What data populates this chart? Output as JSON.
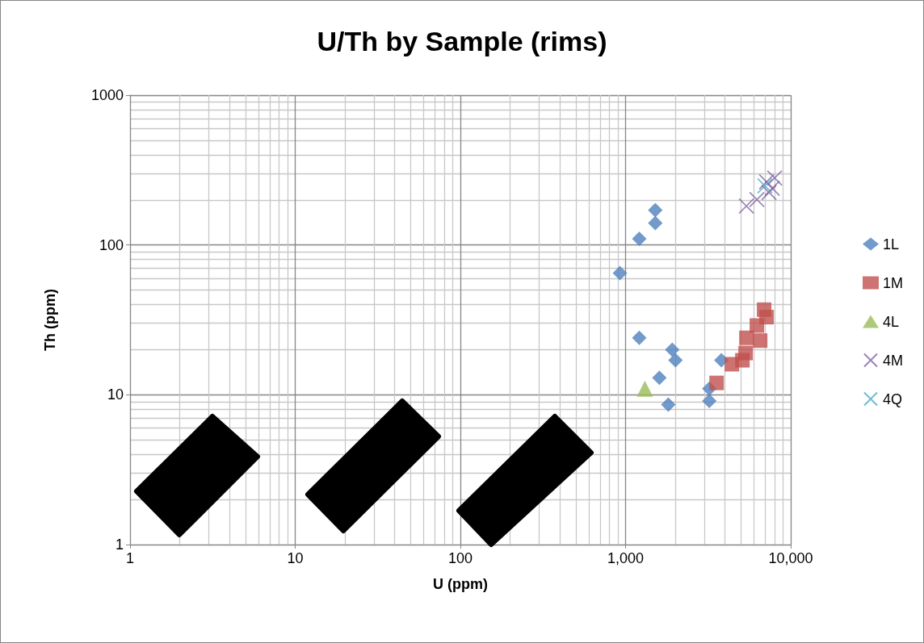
{
  "chart_data": {
    "type": "scatter",
    "title": "U/Th by Sample (rims)",
    "xlabel": "U (ppm)",
    "ylabel": "Th (ppm)",
    "log": "xy",
    "grid": true,
    "legend": "right",
    "xlim": [
      1,
      10000
    ],
    "xticks": [
      1,
      10,
      100,
      {
        "value": 1000,
        "label": "1,000"
      },
      {
        "value": 10000,
        "label": "10,000"
      }
    ],
    "ylim": [
      1,
      1000
    ],
    "yticks": [
      1,
      10,
      100,
      1000
    ],
    "series": [
      {
        "name": "1L",
        "color": "#4f81bd",
        "marker": "diamond",
        "x": [
          924,
          1514,
          1514,
          1211,
          1211,
          1918,
          2006,
          1603,
          1815,
          3803,
          3214,
          3214
        ],
        "values": [
          65,
          171,
          140,
          110,
          24,
          20,
          17,
          13,
          8.6,
          17,
          11,
          9.1
        ]
      },
      {
        "name": "1M",
        "color": "#c0504d",
        "marker": "square",
        "x": [
          3558,
          4405,
          5098,
          5330,
          5395,
          6530,
          6240,
          6900,
          7140
        ],
        "values": [
          12,
          16,
          17,
          19,
          24,
          23,
          29,
          37,
          33
        ]
      },
      {
        "name": "4L",
        "color": "#9bbb59",
        "marker": "triangle",
        "x": [
          1309
        ],
        "values": [
          11
        ]
      },
      {
        "name": "4M",
        "color": "#8064a2",
        "marker": "cross",
        "x": [
          5390,
          6240,
          7390,
          7990,
          7730,
          7140
        ],
        "values": [
          182,
          201,
          224,
          280,
          239,
          264
        ]
      },
      {
        "name": "4Q",
        "color": "#4bacc6",
        "marker": "cross",
        "x": [
          6980
        ],
        "values": [
          248
        ]
      }
    ]
  }
}
